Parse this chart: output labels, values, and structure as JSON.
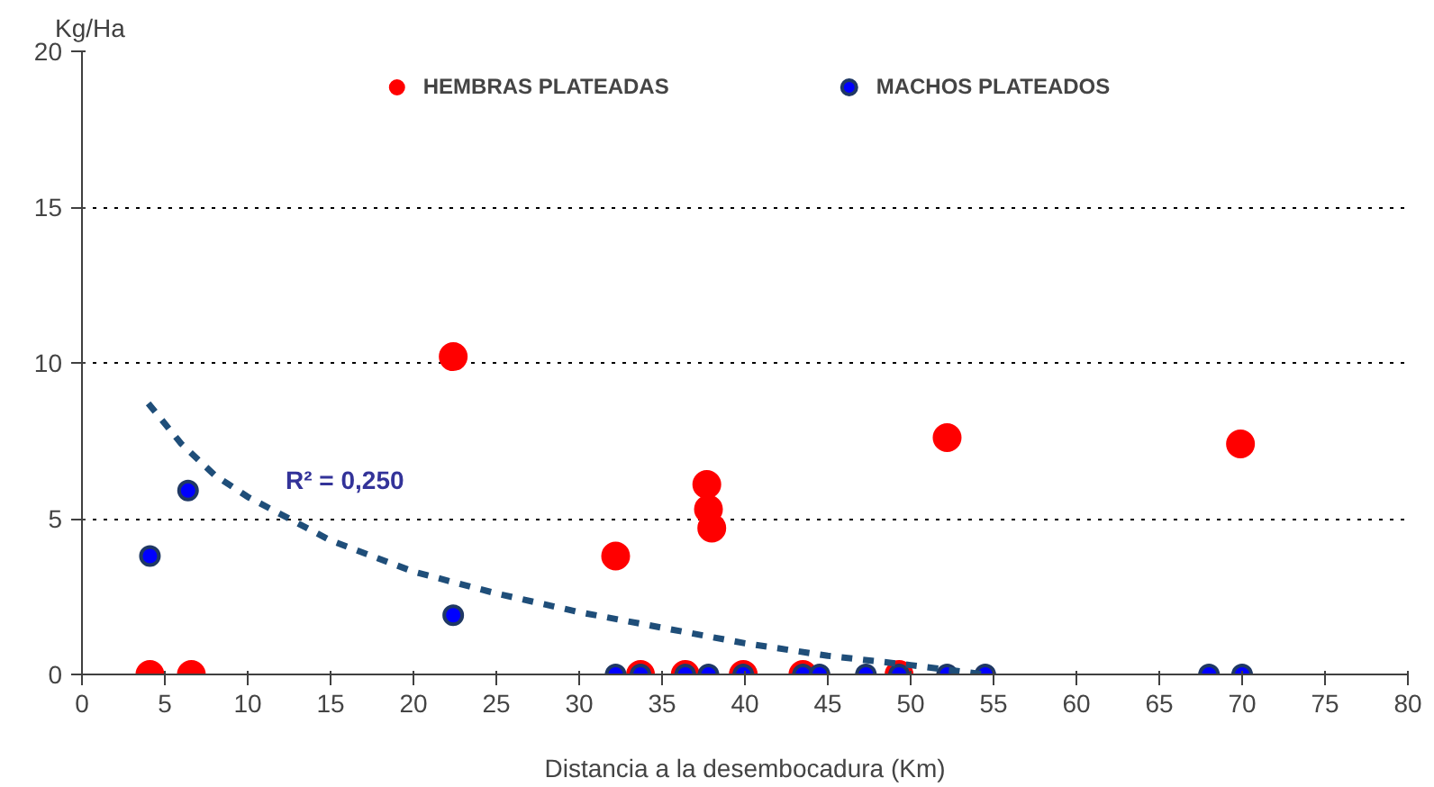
{
  "chart_data": {
    "type": "scatter",
    "xlabel": "Distancia a la desembocadura (Km)",
    "ylabel": "Kg/Ha",
    "xlim": [
      0,
      80
    ],
    "xticks": [
      0,
      5,
      10,
      15,
      20,
      25,
      30,
      35,
      40,
      45,
      50,
      55,
      60,
      65,
      70,
      75,
      80
    ],
    "ylim": [
      0,
      20
    ],
    "yticks": [
      0,
      5,
      10,
      15,
      20
    ],
    "grid": "y",
    "legend": "top",
    "marker": "circle",
    "series": [
      {
        "name": "HEMBRAS PLATEADAS",
        "color": "#ff0000",
        "x": [
          4.1,
          6.6,
          22.4,
          32.2,
          37.7,
          37.8,
          38.0,
          52.2,
          69.9,
          33.7,
          36.4,
          39.9,
          43.5,
          49.3
        ],
        "values": [
          0,
          0,
          10.2,
          3.8,
          6.1,
          5.3,
          4.7,
          7.6,
          7.4,
          0,
          0,
          0,
          0,
          0
        ]
      },
      {
        "name": "MACHOS PLATEADOS",
        "color": "#0000ff",
        "x": [
          4.1,
          6.4,
          22.4,
          32.2,
          33.7,
          36.4,
          37.8,
          39.9,
          43.5,
          44.5,
          47.3,
          49.3,
          52.2,
          54.5,
          68.0,
          70.0
        ],
        "values": [
          3.8,
          5.9,
          1.9,
          0,
          0,
          0,
          0,
          0,
          0,
          0,
          0,
          0,
          0,
          0,
          0,
          0
        ]
      },
      {
        "type": "line",
        "color": "#1f4e79",
        "line_style": "dashed",
        "marker": "none",
        "x": [
          4,
          6,
          8,
          10,
          15,
          20,
          25,
          30,
          35,
          40,
          45,
          50,
          54.5
        ],
        "values": [
          8.7,
          7.4,
          6.4,
          5.7,
          4.3,
          3.3,
          2.6,
          2.0,
          1.5,
          1.0,
          0.6,
          0.3,
          0
        ]
      }
    ],
    "annotations": [
      "R² = 0,250"
    ]
  }
}
